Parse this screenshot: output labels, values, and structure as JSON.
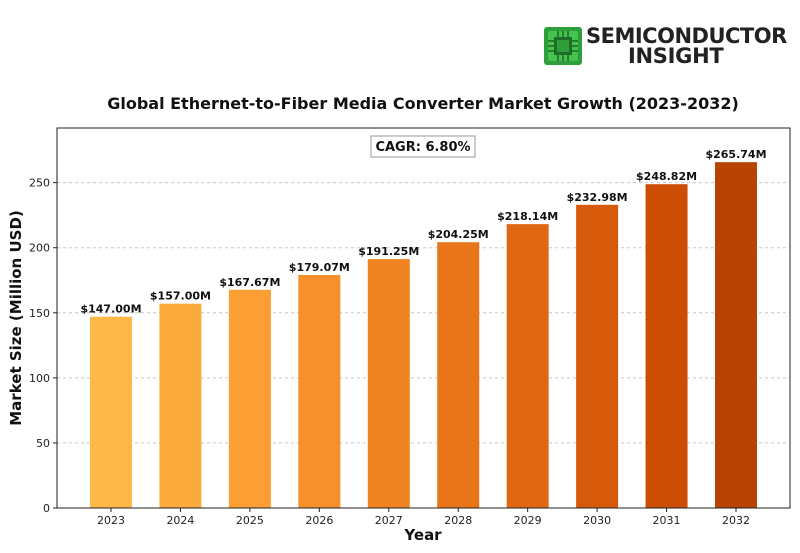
{
  "logo": {
    "line1": "SEMICONDUCTOR",
    "line2": "INSIGHT",
    "icon": "chip-icon",
    "color": "#2e9e3a"
  },
  "chart_data": {
    "type": "bar",
    "title": "Global Ethernet-to-Fiber Media Converter Market Growth (2023-2032)",
    "xlabel": "Year",
    "ylabel": "Market Size (Million USD)",
    "categories": [
      "2023",
      "2024",
      "2025",
      "2026",
      "2027",
      "2028",
      "2029",
      "2030",
      "2031",
      "2032"
    ],
    "values": [
      147.0,
      157.0,
      167.67,
      179.07,
      191.25,
      204.25,
      218.14,
      232.98,
      248.82,
      265.74
    ],
    "data_labels": [
      "$147.00M",
      "$157.00M",
      "$167.67M",
      "$179.07M",
      "$191.25M",
      "$204.25M",
      "$218.14M",
      "$232.98M",
      "$248.82M",
      "$265.74M"
    ],
    "ylim": [
      0,
      292
    ],
    "yticks": [
      0,
      50,
      100,
      150,
      200,
      250
    ],
    "grid": "horizontal dashed",
    "annotation": "CAGR: 6.80%",
    "colors": [
      "#fdb848",
      "#fcab3d",
      "#fb9e33",
      "#f6902a",
      "#f08322",
      "#e8751a",
      "#e06812",
      "#d75a0b",
      "#cc4d05",
      "#b84303"
    ]
  }
}
